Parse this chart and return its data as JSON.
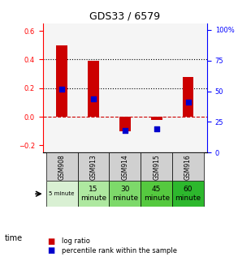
{
  "title": "GDS33 / 6579",
  "samples": [
    "GSM908",
    "GSM913",
    "GSM914",
    "GSM915",
    "GSM916"
  ],
  "time_labels": [
    "5 minute",
    "15\nminute",
    "30\nminute",
    "45\nminute",
    "60\nminute"
  ],
  "time_colors": [
    "#d9f0d3",
    "#aee8a0",
    "#7dd96a",
    "#55c93f",
    "#2db82d"
  ],
  "log_ratio": [
    0.5,
    0.39,
    -0.1,
    -0.02,
    0.28
  ],
  "percentile_rank": [
    0.52,
    0.44,
    0.18,
    0.19,
    0.41
  ],
  "bar_color": "#cc0000",
  "dot_color": "#0000cc",
  "ylim_left": [
    -0.25,
    0.65
  ],
  "ylim_right": [
    0,
    105
  ],
  "yticks_left": [
    -0.2,
    0.0,
    0.2,
    0.4,
    0.6
  ],
  "yticks_right": [
    0,
    25,
    50,
    75,
    100
  ],
  "hlines": [
    0.0,
    0.2,
    0.4
  ],
  "hline_styles": [
    "dashed",
    "dotted",
    "dotted"
  ],
  "hline_colors": [
    "#cc0000",
    "#000000",
    "#000000"
  ],
  "bg_color": "#ffffff",
  "plot_bg": "#f5f5f5"
}
